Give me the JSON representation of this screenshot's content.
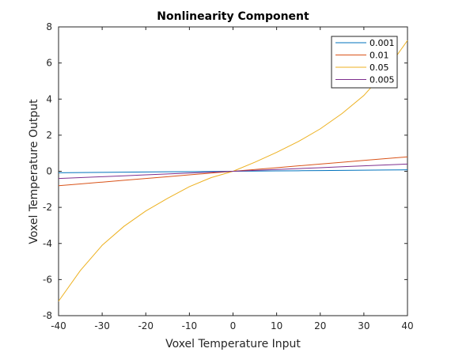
{
  "chart_data": {
    "type": "line",
    "title": "Nonlinearity Component",
    "xlabel": "Voxel Temperature Input",
    "ylabel": "Voxel Temperature Output",
    "xlim": [
      -40,
      40
    ],
    "ylim": [
      -8,
      8
    ],
    "xticks": [
      -40,
      -30,
      -20,
      -10,
      0,
      10,
      20,
      30,
      40
    ],
    "yticks": [
      -8,
      -6,
      -4,
      -2,
      0,
      2,
      4,
      6,
      8
    ],
    "grid": false,
    "legend_position": "top-right",
    "x": [
      -40,
      -35,
      -30,
      -25,
      -20,
      -15,
      -10,
      -5,
      0,
      5,
      10,
      15,
      20,
      25,
      30,
      35,
      40
    ],
    "series": [
      {
        "name": "0.001",
        "color": "#0072BD",
        "values": [
          -0.08,
          -0.07,
          -0.06,
          -0.05,
          -0.04,
          -0.03,
          -0.02,
          -0.01,
          0,
          0.01,
          0.02,
          0.03,
          0.04,
          0.05,
          0.06,
          0.07,
          0.08
        ]
      },
      {
        "name": "0.01",
        "color": "#D95319",
        "values": [
          -0.8,
          -0.7,
          -0.6,
          -0.5,
          -0.4,
          -0.3,
          -0.2,
          -0.1,
          0,
          0.1,
          0.2,
          0.3,
          0.4,
          0.5,
          0.6,
          0.7,
          0.8
        ]
      },
      {
        "name": "0.05",
        "color": "#EDB120",
        "values": [
          -7.2,
          -5.5,
          -4.1,
          -3.05,
          -2.2,
          -1.5,
          -0.85,
          -0.35,
          0,
          0.5,
          1.05,
          1.65,
          2.35,
          3.2,
          4.2,
          5.55,
          7.25
        ]
      },
      {
        "name": "0.005",
        "color": "#7E2F8E",
        "values": [
          -0.4,
          -0.35,
          -0.3,
          -0.25,
          -0.2,
          -0.15,
          -0.1,
          -0.05,
          0,
          0.05,
          0.1,
          0.15,
          0.2,
          0.25,
          0.3,
          0.35,
          0.4
        ]
      }
    ]
  }
}
